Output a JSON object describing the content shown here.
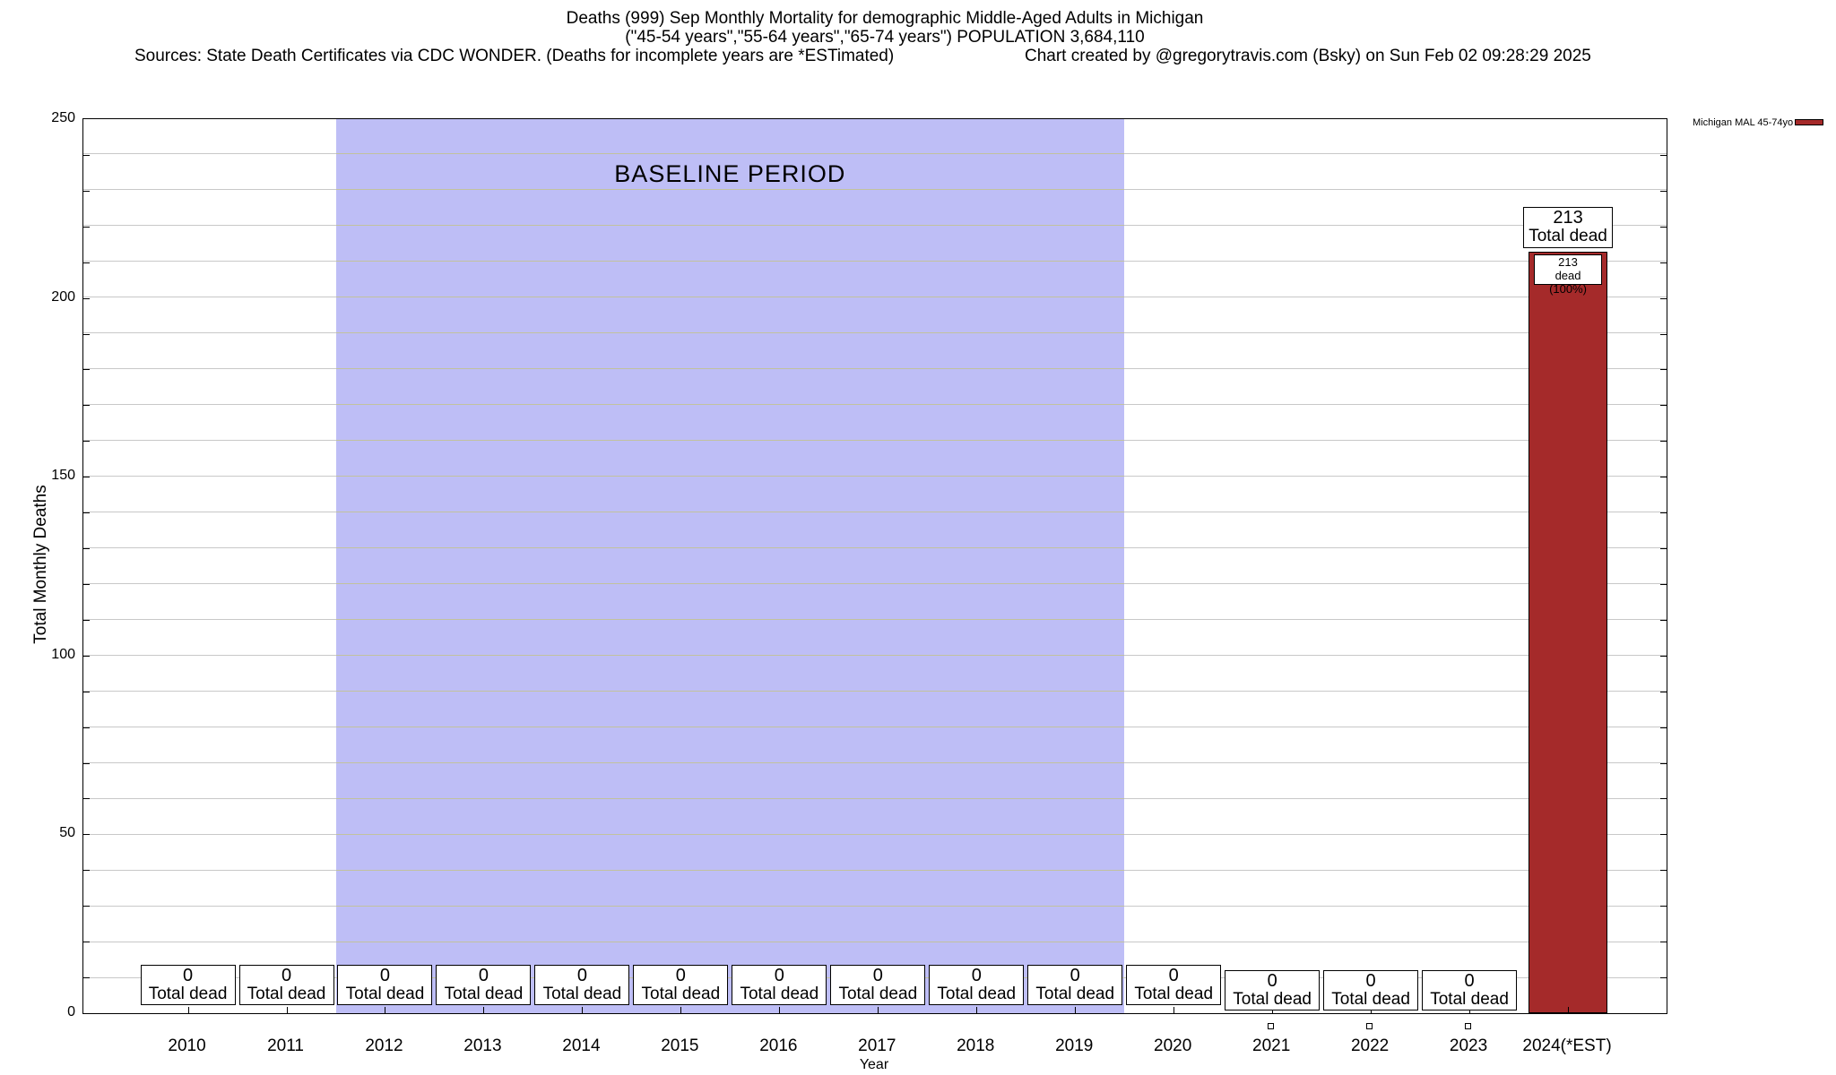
{
  "header": {
    "title_line1": "Deaths (999) Sep Monthly Mortality for demographic Middle-Aged Adults in Michigan",
    "title_line2": "(\"45-54 years\",\"55-64 years\",\"65-74 years\") POPULATION 3,684,110",
    "sources": "Sources: State Death Certificates via CDC WONDER. (Deaths for incomplete years are *ESTimated)",
    "credit": "Chart created by @gregorytravis.com (Bsky) on Sun Feb 02 09:28:29 2025"
  },
  "chart_data": {
    "type": "bar",
    "title": "Deaths (999) Sep Monthly Mortality for demographic Middle-Aged Adults in Michigan",
    "xlabel": "Year",
    "ylabel": "Total Monthly Deaths",
    "ylim": [
      0,
      250
    ],
    "yticks": [
      0,
      50,
      100,
      150,
      200,
      250
    ],
    "grid_step": 10,
    "xlim": [
      2008.94,
      2025.0
    ],
    "x": [
      2010,
      2011,
      2012,
      2013,
      2014,
      2015,
      2016,
      2017,
      2018,
      2019,
      2020,
      2021,
      2022,
      2023,
      2024
    ],
    "categories": [
      "2010",
      "2011",
      "2012",
      "2013",
      "2014",
      "2015",
      "2016",
      "2017",
      "2018",
      "2019",
      "2020",
      "2021",
      "2022",
      "2023",
      "2024(*EST)"
    ],
    "series": [
      {
        "name": "Michigan MAL 45-74yo",
        "color": "#a52a2a",
        "values": [
          0,
          0,
          0,
          0,
          0,
          0,
          0,
          0,
          0,
          0,
          0,
          0,
          0,
          0,
          213
        ]
      }
    ],
    "baseline": {
      "label": "BASELINE PERIOD",
      "from": 2011.5,
      "to": 2019.5,
      "fill": "#bebef6"
    },
    "low_label_years": [
      2021,
      2022,
      2023
    ],
    "marker_years": [
      2021,
      2022,
      2023
    ],
    "annotations": {
      "zero_box": {
        "value": "0",
        "label": "Total dead"
      },
      "total_box": {
        "value": "213",
        "label": "Total dead"
      },
      "bar_inner_box": {
        "value": "213",
        "label": "dead (100%)"
      }
    },
    "colors": {
      "bar": "#a52a2a",
      "baseline_fill": "#bebef6",
      "grid": "#c8c8c8",
      "grid_on_baseline": "#c2c29e",
      "border": "#000000"
    },
    "legend_position": "outside-top-right",
    "grid": true
  }
}
